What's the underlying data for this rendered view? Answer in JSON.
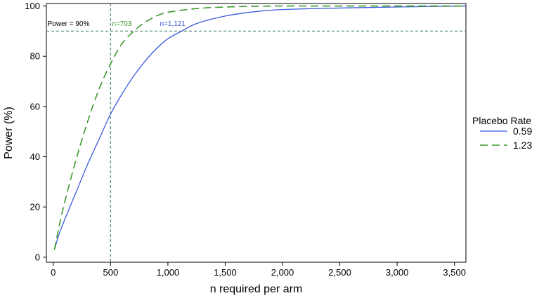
{
  "chart_data": {
    "type": "line",
    "title": "",
    "xlabel": "n required per arm",
    "ylabel": "Power (%)",
    "xlim": [
      -60,
      3600
    ],
    "ylim": [
      -2,
      101
    ],
    "xticks": [
      0,
      500,
      1000,
      1500,
      2000,
      2500,
      3000,
      3500
    ],
    "xtick_labels": [
      "0",
      "500",
      "1,000",
      "1,500",
      "2,000",
      "2,500",
      "3,000",
      "3,500"
    ],
    "yticks": [
      0,
      20,
      40,
      60,
      80,
      100
    ],
    "ytick_labels": [
      "0",
      "20",
      "40",
      "60",
      "80",
      "100"
    ],
    "grid": false,
    "legend": {
      "title": "Placebo Rate",
      "position": "right"
    },
    "series": [
      {
        "name": "0.59",
        "color": "#3b5bdb",
        "dash": "solid",
        "x": [
          10,
          50,
          100,
          200,
          300,
          400,
          500,
          600,
          700,
          800,
          900,
          1000,
          1121,
          1250,
          1500,
          1750,
          2000,
          2500,
          3000,
          3600
        ],
        "y": [
          3,
          9,
          15,
          26,
          37,
          47,
          57,
          65,
          72,
          78,
          83,
          87,
          90,
          93,
          96,
          97.7,
          98.6,
          99.2,
          99.6,
          100
        ]
      },
      {
        "name": "1.23",
        "color": "#3a9a2a",
        "dash": "dashed",
        "x": [
          10,
          50,
          100,
          200,
          300,
          400,
          500,
          600,
          703,
          800,
          900,
          1000,
          1250,
          1500,
          1750,
          2000,
          2500,
          3000,
          3600
        ],
        "y": [
          3,
          12,
          22,
          39,
          54,
          67,
          77,
          85,
          90,
          93.5,
          96,
          97.5,
          99,
          99.6,
          99.9,
          100,
          100,
          100,
          100
        ]
      }
    ],
    "reference_lines": [
      {
        "axis": "y",
        "value": 90,
        "color": "#5e8f7e",
        "dash": "dashed"
      },
      {
        "axis": "x",
        "value": 500,
        "color": "#5e8f7e",
        "dash": "dashed"
      }
    ],
    "annotations": [
      {
        "text": "Power = 90%",
        "x": -50,
        "y": 92,
        "color": "#000000"
      },
      {
        "text": "n=703",
        "x": 500,
        "y": 92,
        "color": "#3a9a2a"
      },
      {
        "text": "n=1,121",
        "x": 930,
        "y": 92,
        "color": "#3b5bdb"
      }
    ]
  }
}
